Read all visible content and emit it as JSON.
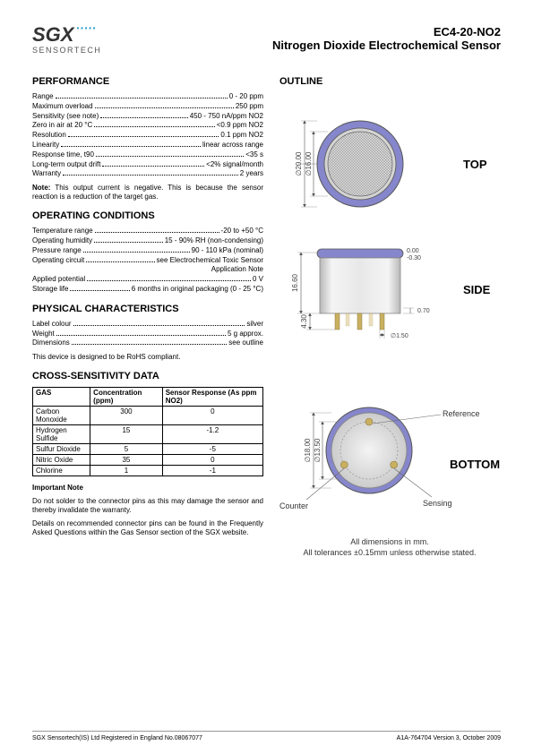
{
  "logo": {
    "main": "SGX",
    "sub": "SENSORTECH"
  },
  "title": {
    "code": "EC4-20-NO2",
    "name": "Nitrogen Dioxide Electrochemical Sensor"
  },
  "sections": {
    "performance": {
      "heading": "PERFORMANCE",
      "rows": [
        {
          "label": "Range",
          "value": "0 - 20 ppm"
        },
        {
          "label": "Maximum overload",
          "value": "250 ppm"
        },
        {
          "label": "Sensitivity (see note)",
          "value": "450 - 750 nA/ppm NO2"
        },
        {
          "label": "Zero in air at 20 °C",
          "value": "<0.9 ppm NO2"
        },
        {
          "label": "Resolution",
          "value": "0.1 ppm NO2"
        },
        {
          "label": "Linearity",
          "value": "linear across range"
        },
        {
          "label": "Response time, t90",
          "value": "<35 s"
        },
        {
          "label": "Long-term output drift",
          "value": "<2% signal/month"
        },
        {
          "label": "Warranty",
          "value": "2 years"
        }
      ],
      "note_label": "Note:",
      "note": " This output current is negative. This is because the sensor reaction is a reduction of the target gas."
    },
    "operating": {
      "heading": "OPERATING CONDITIONS",
      "rows": [
        {
          "label": "Temperature range",
          "value": "-20 to +50 °C"
        },
        {
          "label": "Operating humidity",
          "value": "15 - 90% RH (non-condensing)"
        },
        {
          "label": "Pressure range",
          "value": "90 - 110 kPa (nominal)"
        },
        {
          "label": "Operating circuit",
          "value": "see Electrochemical Toxic Sensor"
        },
        {
          "label": "",
          "value": "Application Note"
        },
        {
          "label": "Applied potential",
          "value": "0 V"
        },
        {
          "label": "Storage life",
          "value": "6 months in original packaging (0 - 25 °C)"
        }
      ]
    },
    "physical": {
      "heading": "PHYSICAL CHARACTERISTICS",
      "rows": [
        {
          "label": "Label colour",
          "value": "silver"
        },
        {
          "label": "Weight",
          "value": "5 g approx."
        },
        {
          "label": "Dimensions",
          "value": "see outline"
        }
      ],
      "note": "This device is designed to be RoHS compliant."
    },
    "cross": {
      "heading": "CROSS-SENSITIVITY DATA",
      "columns": [
        "GAS",
        "Concentration (ppm)",
        "Sensor Response (As ppm NO2)"
      ],
      "rows": [
        [
          "Carbon Monoxide",
          "300",
          "0"
        ],
        [
          "Hydrogen Sulfide",
          "15",
          "-1.2"
        ],
        [
          "Sulfur Dioxide",
          "5",
          "-5"
        ],
        [
          "Nitric Oxide",
          "35",
          "0"
        ],
        [
          "Chlorine",
          "1",
          "-1"
        ]
      ],
      "important_heading": "Important Note",
      "important_1": "Do not solder to the connector pins as this may damage the sensor and thereby invalidate the warranty.",
      "important_2": "Details on recommended connector pins can be found in the Frequently Asked Questions within the Gas Sensor section of the SGX website."
    }
  },
  "outline": {
    "heading": "OUTLINE",
    "top_label": "TOP",
    "side_label": "SIDE",
    "bottom_label": "BOTTOM",
    "dim_20": "∅20.00",
    "dim_16": "∅16.00",
    "dim_166": "16.60",
    "dim_tol": "0.00\n-0.30",
    "dim_43": "4.30",
    "dim_07": "0.70",
    "dim_15": "∅1.50",
    "dim_18": "∅18.00",
    "dim_135": "∅13.50",
    "lbl_counter": "Counter",
    "lbl_sensing": "Sensing",
    "lbl_reference": "Reference",
    "caption1": "All dimensions in mm.",
    "caption2": "All tolerances ±0.15mm unless otherwise stated.",
    "colors": {
      "ring": "#7878c8",
      "pin": "#c9b060",
      "body_light": "#f0f0f0",
      "body_dark": "#b8b8b8",
      "line": "#666"
    }
  },
  "footer": {
    "left": "SGX Sensortech(IS) Ltd Registered in England No.08067077",
    "right": "A1A-764704 Version 3, October 2009"
  }
}
